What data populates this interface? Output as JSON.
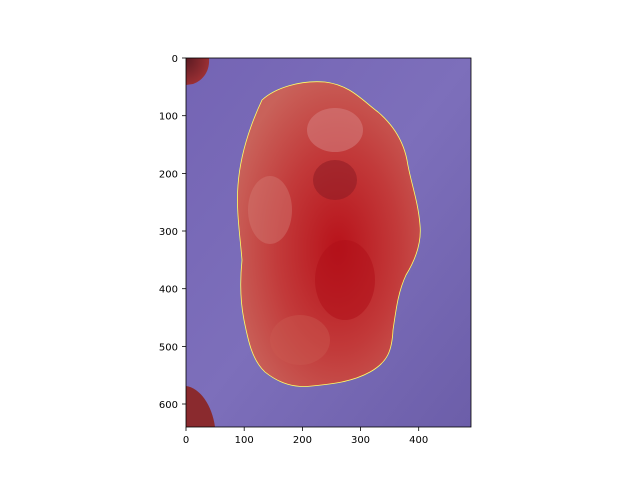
{
  "image": {
    "width": 490,
    "height": 640,
    "x_ticks": [
      0,
      100,
      200,
      300,
      400
    ],
    "y_ticks": [
      0,
      100,
      200,
      300,
      400,
      500,
      600
    ],
    "x_tick_labels": [
      "0",
      "100",
      "200",
      "300",
      "400"
    ],
    "y_tick_labels": [
      "0",
      "100",
      "200",
      "300",
      "400",
      "500",
      "600"
    ],
    "colors": {
      "background_overlay": "#7c6cb8",
      "lesion_overlay": "#c03b3b",
      "lesion_dark": "#a3151c",
      "contour": "#ffff66"
    }
  }
}
